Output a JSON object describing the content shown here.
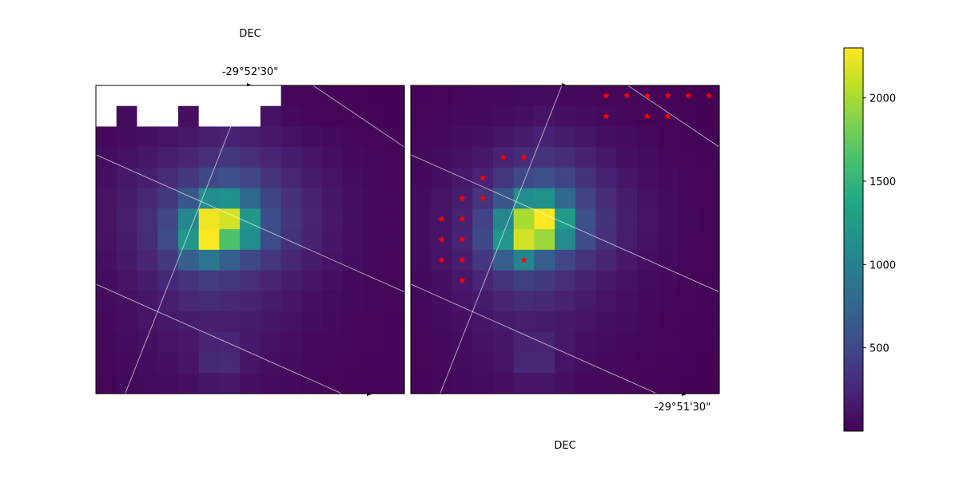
{
  "chart_data": [
    {
      "type": "heatmap",
      "panel": "left",
      "xlabel": "",
      "ylabel": "",
      "top_axis_label": "DEC",
      "top_tick_label": "-29°52'30\"",
      "grid": true,
      "nrows": 15,
      "ncols": 15,
      "masked_cells": [
        [
          0,
          0
        ],
        [
          0,
          1
        ],
        [
          0,
          2
        ],
        [
          0,
          3
        ],
        [
          0,
          4
        ],
        [
          0,
          5
        ],
        [
          0,
          6
        ],
        [
          0,
          7
        ],
        [
          0,
          8
        ],
        [
          1,
          0
        ],
        [
          1,
          2
        ],
        [
          1,
          3
        ],
        [
          1,
          5
        ],
        [
          1,
          6
        ],
        [
          1,
          7
        ]
      ],
      "values": [
        [
          0,
          0,
          0,
          0,
          0,
          0,
          0,
          0,
          0,
          40,
          30,
          20,
          20,
          10,
          10
        ],
        [
          0,
          70,
          0,
          0,
          90,
          0,
          0,
          0,
          110,
          60,
          40,
          30,
          20,
          20,
          10
        ],
        [
          60,
          80,
          100,
          130,
          160,
          190,
          220,
          190,
          150,
          110,
          80,
          60,
          40,
          30,
          20
        ],
        [
          80,
          110,
          140,
          190,
          240,
          300,
          360,
          300,
          240,
          180,
          130,
          90,
          60,
          40,
          30
        ],
        [
          100,
          150,
          200,
          270,
          380,
          500,
          560,
          480,
          340,
          250,
          170,
          120,
          80,
          50,
          30
        ],
        [
          120,
          180,
          260,
          380,
          620,
          1100,
          1150,
          780,
          470,
          320,
          210,
          140,
          90,
          60,
          40
        ],
        [
          120,
          190,
          300,
          480,
          1050,
          2250,
          2150,
          1200,
          540,
          350,
          230,
          150,
          100,
          60,
          40
        ],
        [
          110,
          180,
          290,
          520,
          1200,
          2300,
          1650,
          1100,
          520,
          330,
          220,
          140,
          90,
          60,
          40
        ],
        [
          100,
          160,
          240,
          380,
          700,
          900,
          680,
          500,
          360,
          260,
          180,
          120,
          80,
          50,
          30
        ],
        [
          80,
          120,
          180,
          250,
          340,
          400,
          360,
          300,
          240,
          180,
          130,
          90,
          60,
          40,
          30
        ],
        [
          70,
          100,
          140,
          190,
          250,
          280,
          260,
          220,
          180,
          140,
          100,
          70,
          50,
          40,
          30
        ],
        [
          60,
          90,
          120,
          150,
          180,
          200,
          190,
          170,
          140,
          110,
          80,
          60,
          40,
          30,
          20
        ],
        [
          50,
          70,
          100,
          120,
          150,
          230,
          240,
          160,
          110,
          90,
          60,
          50,
          40,
          30,
          20
        ],
        [
          40,
          60,
          80,
          100,
          130,
          260,
          270,
          130,
          90,
          70,
          50,
          40,
          30,
          20,
          20
        ],
        [
          30,
          50,
          70,
          80,
          100,
          140,
          150,
          100,
          70,
          60,
          40,
          30,
          20,
          20,
          20
        ]
      ]
    },
    {
      "type": "heatmap",
      "panel": "right",
      "xlabel": "",
      "ylabel": "",
      "bottom_axis_label": "DEC",
      "bottom_tick_label": "-29°51'30\"",
      "grid": true,
      "nrows": 15,
      "ncols": 15,
      "masked_cells": [],
      "values": [
        [
          20,
          30,
          40,
          50,
          60,
          70,
          70,
          60,
          50,
          40,
          30,
          20,
          20,
          10,
          10
        ],
        [
          30,
          40,
          50,
          60,
          80,
          100,
          120,
          100,
          80,
          60,
          40,
          30,
          20,
          20,
          10
        ],
        [
          40,
          60,
          80,
          100,
          140,
          180,
          220,
          180,
          140,
          100,
          70,
          50,
          30,
          20,
          20
        ],
        [
          50,
          80,
          110,
          150,
          220,
          290,
          340,
          290,
          210,
          150,
          100,
          70,
          40,
          30,
          20
        ],
        [
          60,
          100,
          150,
          220,
          360,
          500,
          560,
          470,
          330,
          220,
          140,
          90,
          60,
          40,
          30
        ],
        [
          70,
          120,
          190,
          340,
          620,
          1100,
          1150,
          780,
          450,
          290,
          180,
          110,
          70,
          40,
          30
        ],
        [
          80,
          130,
          220,
          450,
          1050,
          2000,
          2300,
          1250,
          560,
          330,
          200,
          120,
          80,
          50,
          30
        ],
        [
          80,
          130,
          230,
          500,
          1200,
          2150,
          1950,
          1100,
          520,
          310,
          190,
          110,
          70,
          40,
          30
        ],
        [
          70,
          120,
          200,
          360,
          700,
          1050,
          700,
          480,
          340,
          230,
          150,
          90,
          60,
          40,
          30
        ],
        [
          60,
          100,
          150,
          240,
          340,
          420,
          380,
          300,
          220,
          160,
          110,
          70,
          50,
          30,
          20
        ],
        [
          50,
          80,
          120,
          170,
          230,
          270,
          250,
          210,
          170,
          120,
          90,
          60,
          40,
          30,
          20
        ],
        [
          40,
          70,
          100,
          130,
          170,
          190,
          180,
          160,
          130,
          100,
          70,
          50,
          30,
          20,
          20
        ],
        [
          30,
          60,
          80,
          110,
          140,
          220,
          230,
          150,
          100,
          80,
          50,
          40,
          30,
          20,
          20
        ],
        [
          30,
          50,
          70,
          90,
          120,
          250,
          260,
          120,
          80,
          60,
          40,
          30,
          20,
          20,
          10
        ],
        [
          20,
          40,
          60,
          70,
          90,
          130,
          140,
          90,
          60,
          50,
          30,
          20,
          20,
          10,
          10
        ]
      ],
      "markers": {
        "symbol": "star",
        "color": "#ff0000",
        "cells": [
          [
            0,
            9
          ],
          [
            0,
            10
          ],
          [
            0,
            11
          ],
          [
            0,
            12
          ],
          [
            0,
            13
          ],
          [
            0,
            14
          ],
          [
            1,
            9
          ],
          [
            1,
            11
          ],
          [
            1,
            12
          ],
          [
            3,
            4
          ],
          [
            3,
            5
          ],
          [
            4,
            3
          ],
          [
            5,
            2
          ],
          [
            5,
            3
          ],
          [
            6,
            1
          ],
          [
            6,
            2
          ],
          [
            7,
            1
          ],
          [
            7,
            2
          ],
          [
            8,
            1
          ],
          [
            8,
            2
          ],
          [
            8,
            5
          ],
          [
            9,
            2
          ]
        ]
      }
    }
  ],
  "colorbar": {
    "colormap": "viridis",
    "vmin": 0,
    "vmax": 2300,
    "ticks": [
      500,
      1000,
      1500,
      2000
    ],
    "tick_labels": [
      "500",
      "1000",
      "1500",
      "2000"
    ]
  }
}
